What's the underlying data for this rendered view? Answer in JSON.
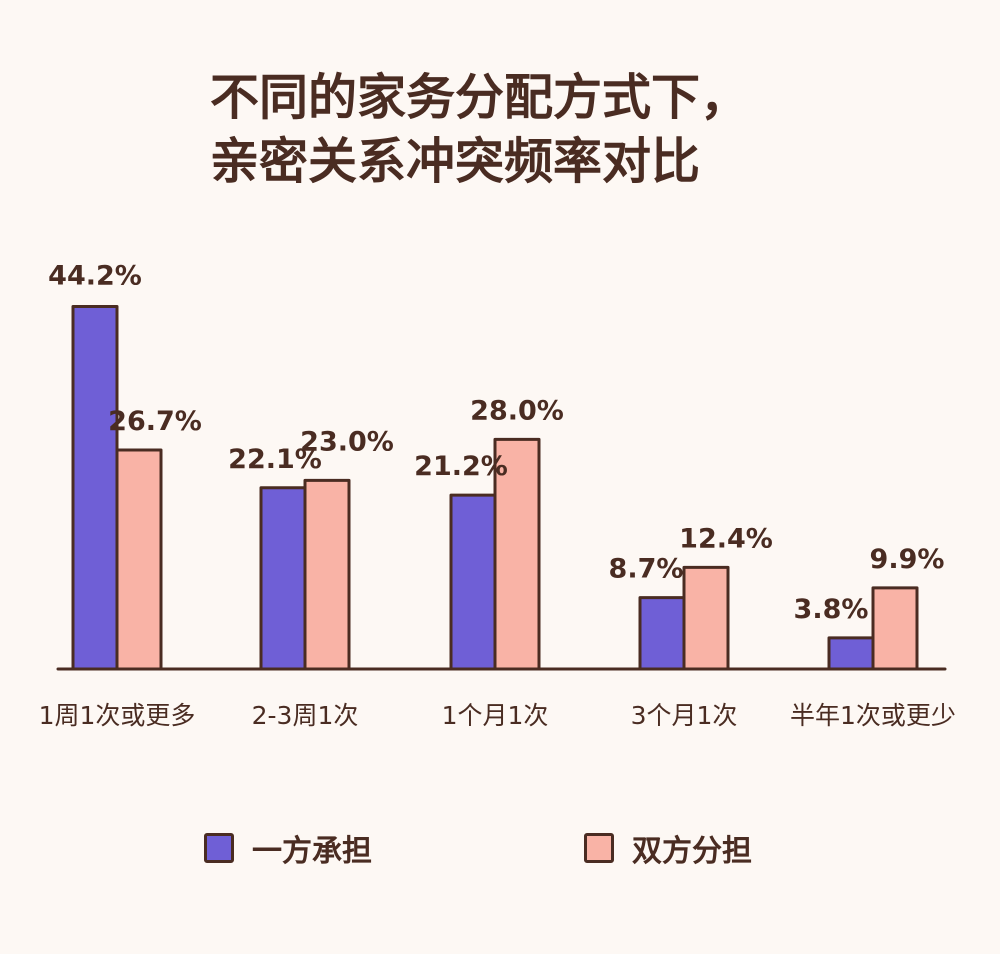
{
  "chart_data": {
    "type": "bar",
    "title_lines": [
      "不同的家务分配方式下，",
      "亲密关系冲突频率对比"
    ],
    "categories": [
      "1周1次或更多",
      "2-3周1次",
      "1个月1次",
      "3个月1次",
      "半年1次或更少"
    ],
    "series": [
      {
        "name": "一方承担",
        "color": "#6f5fd6",
        "values": [
          44.2,
          22.1,
          21.2,
          8.7,
          3.8
        ],
        "labels": [
          "44.2%",
          "22.1%",
          "21.2%",
          "8.7%",
          "3.8%"
        ]
      },
      {
        "name": "双方分担",
        "color": "#f9b3a6",
        "values": [
          26.7,
          23.0,
          28.0,
          12.4,
          9.9
        ],
        "labels": [
          "26.7%",
          "23.0%",
          "28.0%",
          "12.4%",
          "9.9%"
        ]
      }
    ],
    "ylim": [
      0,
      50
    ],
    "grid": false,
    "legend_position": "bottom",
    "outline_color": "#4a2c22",
    "text_color": "#4a2c22",
    "background": "#fdf8f4"
  }
}
